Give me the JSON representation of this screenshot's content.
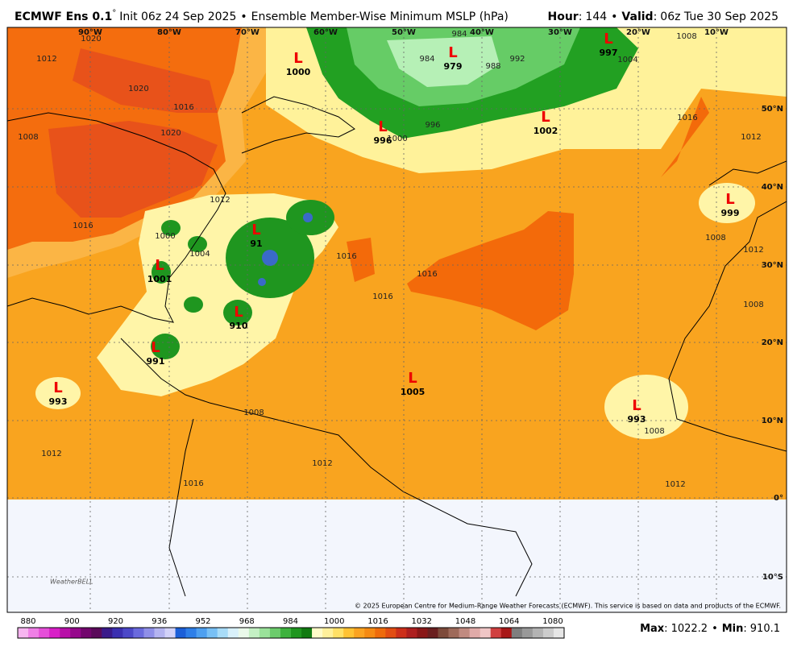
{
  "header": {
    "model": "ECMWF Ens 0.1",
    "degree": "°",
    "init": "Init 06z 24 Sep 2025",
    "bullet": "•",
    "product": "Ensemble Member-Wise Minimum MSLP (hPa)",
    "hour_label": "Hour",
    "hour": "144",
    "valid_label": "Valid",
    "valid": "06z Tue 30 Sep 2025",
    "sep": ":"
  },
  "map": {
    "longitudes": [
      "90°W",
      "80°W",
      "70°W",
      "60°W",
      "50°W",
      "40°W",
      "30°W",
      "20°W",
      "10°W"
    ],
    "latitudes": [
      "50°N",
      "40°N",
      "30°N",
      "20°N",
      "10°N",
      "0°",
      "10°S"
    ],
    "low_symbol": "L",
    "lows": [
      "1000",
      "979",
      "997",
      "996",
      "1002",
      "999",
      "91",
      "910",
      "1001",
      "991",
      "993",
      "1005",
      "993"
    ],
    "contour_labels": [
      "1020",
      "1012",
      "1020",
      "1016",
      "1020",
      "1008",
      "1012",
      "1016",
      "1000",
      "1004",
      "984",
      "984",
      "988",
      "992",
      "996",
      "1000",
      "1004",
      "1008",
      "1016",
      "1012",
      "1016",
      "1016",
      "1016",
      "1008",
      "1012",
      "1008",
      "1008",
      "1008",
      "1012",
      "1012",
      "1016",
      "1012"
    ],
    "copyright": "© 2025 European Centre for Medium-Range Weather Forecasts (ECMWF). This service is based on data and products of the ECMWF.",
    "logo": "WeatherBELL"
  },
  "colorbar": {
    "labels": [
      "880",
      "900",
      "920",
      "936",
      "952",
      "968",
      "984",
      "1000",
      "1016",
      "1032",
      "1048",
      "1064",
      "1080"
    ],
    "colors": [
      "#f7b5f0",
      "#ef7fe6",
      "#e64fd9",
      "#d81fc7",
      "#b80fa8",
      "#96088c",
      "#72066d",
      "#5a0a5a",
      "#3a1a8a",
      "#3b2fb0",
      "#4c48c8",
      "#6a6add",
      "#8f8fe8",
      "#b4b4f0",
      "#d2d2f8",
      "#1b5fd8",
      "#2e7fe8",
      "#4ea0f0",
      "#78c0f5",
      "#a8dcf8",
      "#d8f0fa",
      "#eaf9ea",
      "#c4f0c4",
      "#9ae29a",
      "#6ccc6c",
      "#3db23d",
      "#1f961f",
      "#117a11",
      "#fffbc8",
      "#fff09a",
      "#ffe066",
      "#ffc233",
      "#fba321",
      "#f58a13",
      "#ee6b0b",
      "#e24d12",
      "#cc2f1a",
      "#ad1f1f",
      "#8a1717",
      "#6a1f1f",
      "#7d4a3a",
      "#9e6a5a",
      "#c08a80",
      "#e0aaa8",
      "#f0c6c6",
      "#d04040",
      "#a81818",
      "#7f7f7f",
      "#999999",
      "#b3b3b3",
      "#cccccc",
      "#e6e6e6"
    ]
  },
  "footer": {
    "max_label": "Max",
    "max": "1022.2",
    "min_label": "Min",
    "min": "910.1",
    "sep": ":",
    "bullet": "•"
  }
}
